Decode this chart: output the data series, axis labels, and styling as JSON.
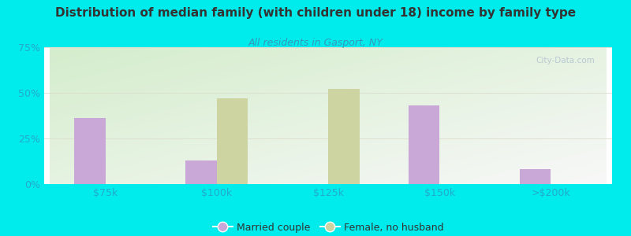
{
  "title": "Distribution of median family (with children under 18) income by family type",
  "subtitle": "All residents in Gasport, NY",
  "categories": [
    "$75k",
    "$100k",
    "$125k",
    "$150k",
    ">$200k"
  ],
  "married_couple": [
    36,
    13,
    0,
    43,
    8
  ],
  "female_no_husband": [
    0,
    47,
    52,
    0,
    0
  ],
  "bar_width": 0.28,
  "married_color": "#c9a8d8",
  "female_color": "#cdd4a2",
  "bg_color": "#00ecec",
  "plot_bg_top_left": "#d4edcc",
  "plot_bg_bottom_right": "#f8f8f8",
  "title_color": "#333333",
  "subtitle_color": "#3399bb",
  "tick_color": "#22aacc",
  "ylim": [
    0,
    75
  ],
  "yticks": [
    0,
    25,
    50,
    75
  ],
  "ytick_labels": [
    "0%",
    "25%",
    "50%",
    "75%"
  ],
  "legend_married": "Married couple",
  "legend_female": "Female, no husband",
  "watermark": "City-Data.com"
}
